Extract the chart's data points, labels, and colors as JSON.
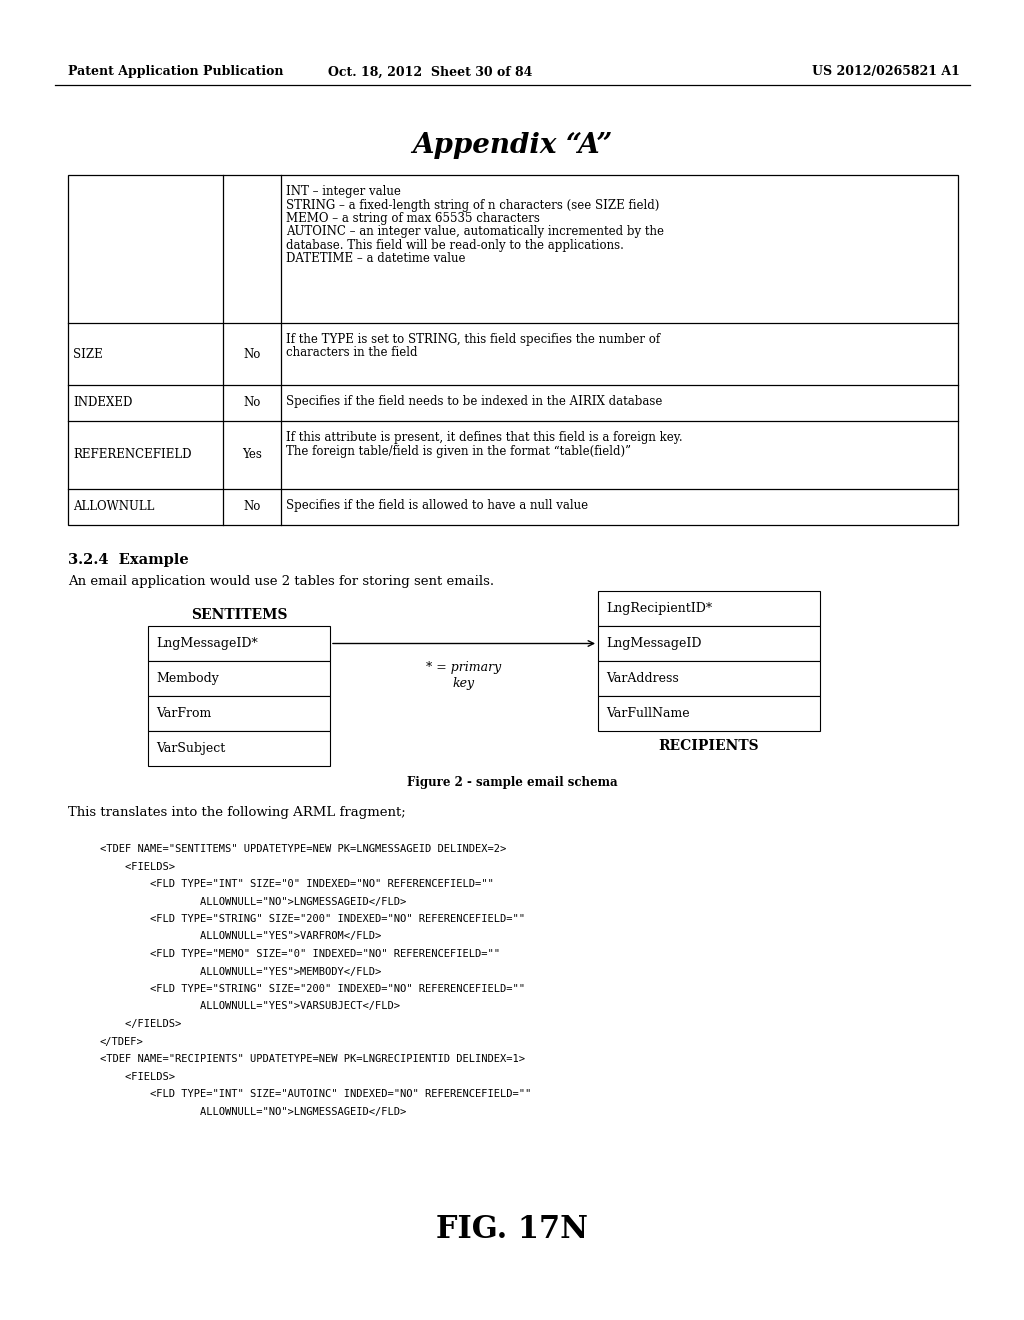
{
  "background_color": "#ffffff",
  "header_left": "Patent Application Publication",
  "header_mid": "Oct. 18, 2012  Sheet 30 of 84",
  "header_right": "US 2012/0265821 A1",
  "title": "Appendix “A”",
  "table_rows": [
    [
      "",
      "",
      "INT – integer value\nSTRING – a fixed-length string of n characters (see SIZE field)\nMEMO – a string of max 65535 characters\nAUTOINC – an integer value, automatically incremented by the\ndatabase. This field will be read-only to the applications.\nDATETIME – a datetime value"
    ],
    [
      "SIZE",
      "No",
      "If the TYPE is set to STRING, this field specifies the number of\ncharacters in the field"
    ],
    [
      "INDEXED",
      "No",
      "Specifies if the field needs to be indexed in the AIRIX database"
    ],
    [
      "REFERENCEFIELD",
      "Yes",
      "If this attribute is present, it defines that this field is a foreign key.\nThe foreign table/field is given in the format “table(field)”"
    ],
    [
      "ALLOWNULL",
      "No",
      "Specifies if the field is allowed to have a null value"
    ]
  ],
  "section_header_bold": "3.2.4  Example",
  "section_text": "An email application would use 2 tables for storing sent emails.",
  "sentitems_label": "SENTITEMS",
  "sentitems_fields": [
    "LngMessageID*",
    "Membody",
    "VarFrom",
    "VarSubject"
  ],
  "recipients_label": "RECIPIENTS",
  "recipients_top_field": "LngRecipientID*",
  "recipients_fields": [
    "LngMessageID",
    "VarAddress",
    "VarFullName"
  ],
  "primary_key_line1": "* = primary",
  "primary_key_line2": "key",
  "figure_caption": "Figure 2 - sample email schema",
  "arml_text": "This translates into the following ARML fragment;",
  "code_lines": [
    "<TDEF NAME=\"SENTITEMS\" UPDATETYPE=NEW PK=LNGMESSAGEID DELINDEX=2>",
    "    <FIELDS>",
    "        <FLD TYPE=\"INT\" SIZE=\"0\" INDEXED=\"NO\" REFERENCEFIELD=\"\"",
    "                ALLOWNULL=\"NO\">LNGMESSAGEID</FLD>",
    "        <FLD TYPE=\"STRING\" SIZE=\"200\" INDEXED=\"NO\" REFERENCEFIELD=\"\"",
    "                ALLOWNULL=\"YES\">VARFROM</FLD>",
    "        <FLD TYPE=\"MEMO\" SIZE=\"0\" INDEXED=\"NO\" REFERENCEFIELD=\"\"",
    "                ALLOWNULL=\"YES\">MEMBODY</FLD>",
    "        <FLD TYPE=\"STRING\" SIZE=\"200\" INDEXED=\"NO\" REFERENCEFIELD=\"\"",
    "                ALLOWNULL=\"YES\">VARSUBJECT</FLD>",
    "    </FIELDS>",
    "</TDEF>",
    "<TDEF NAME=\"RECIPIENTS\" UPDATETYPE=NEW PK=LNGRECIPIENTID DELINDEX=1>",
    "    <FIELDS>",
    "        <FLD TYPE=\"INT\" SIZE=\"AUTOINC\" INDEXED=\"NO\" REFERENCEFIELD=\"\"",
    "                ALLOWNULL=\"NO\">LNGMESSAGEID</FLD>"
  ],
  "fig_label": "FIG. 17N"
}
